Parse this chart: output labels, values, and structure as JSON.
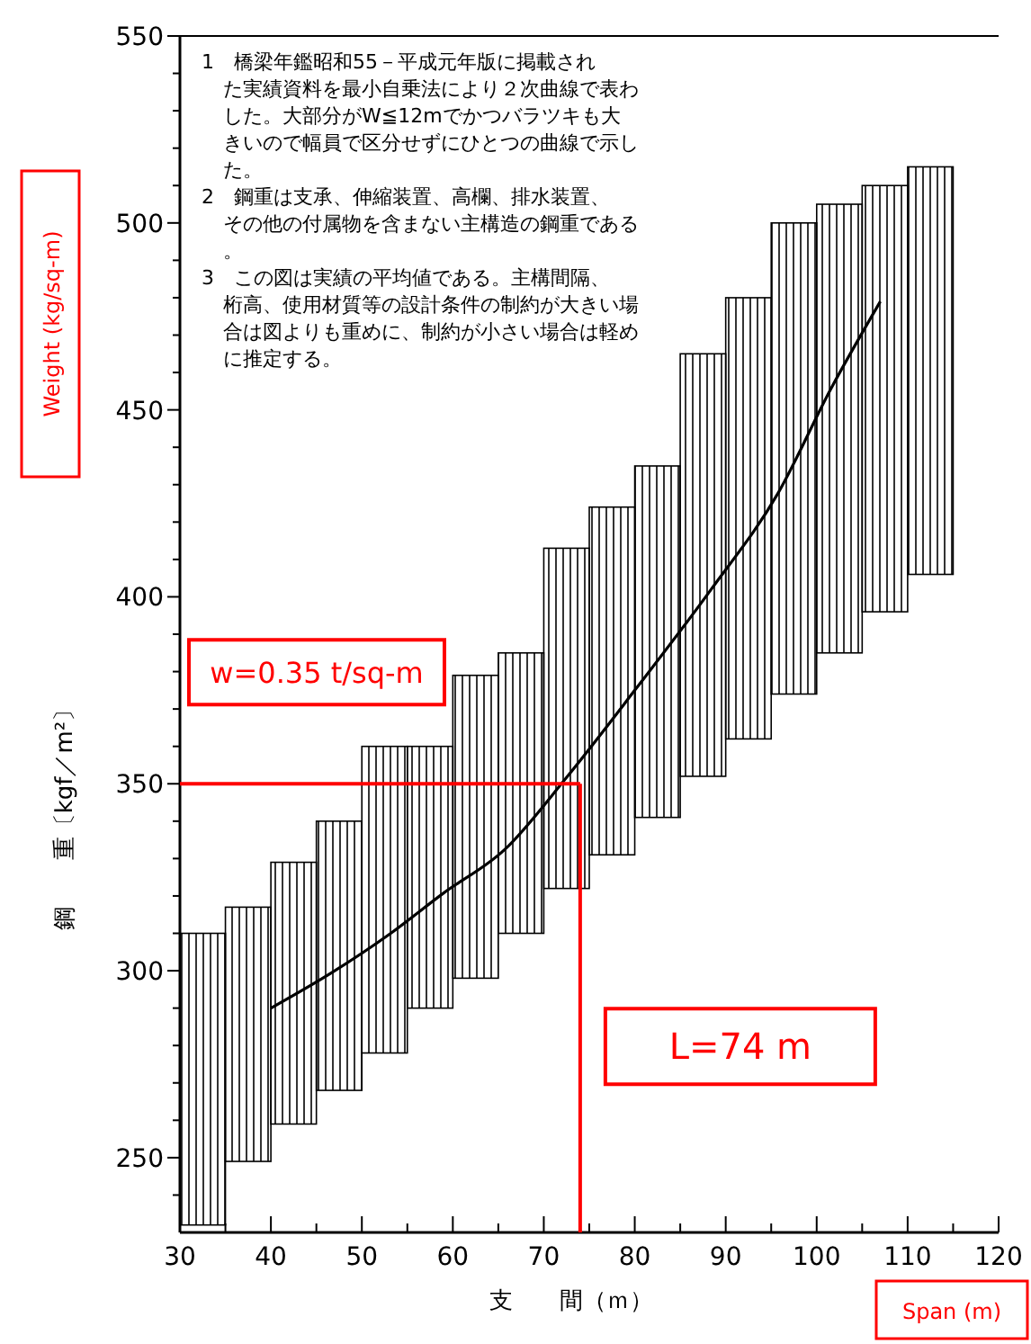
{
  "chart_data": {
    "type": "bar",
    "xlabel": "支　　間（ｍ）",
    "ylabel": "鋼　　重〔kgf／m²〕",
    "series": [
      {
        "color": "#000000",
        "x": [
          32.5,
          37.5,
          42.5,
          47.5,
          52.5,
          57.5,
          62.5,
          67.5,
          72.5,
          77.5,
          82.5,
          87.5,
          92.5,
          97.5,
          102.5,
          107.5,
          112.5
        ],
        "base": [
          232,
          249,
          259,
          268,
          278,
          290,
          298,
          310,
          322,
          331,
          341,
          352,
          362,
          374,
          385,
          396,
          406
        ],
        "values": [
          78,
          68,
          70,
          72,
          82,
          70,
          81,
          75,
          91,
          93,
          94,
          113,
          118,
          126,
          120,
          114,
          109
        ]
      },
      {
        "type": "line",
        "color": "#000000",
        "x": [
          40,
          46.7,
          53,
          59,
          65.7,
          72.5,
          80,
          88.4,
          95.7,
          101.6,
          107
        ],
        "values": [
          290,
          299.5,
          309.7,
          320.8,
          332.4,
          351.7,
          375,
          402,
          427.5,
          455.8,
          479
        ],
        "marker": "none",
        "line_style": "solid"
      }
    ],
    "xlim": [
      30,
      120
    ],
    "ylim": [
      230,
      550
    ],
    "xticks": [
      30,
      {
        "value": 35,
        "label": null
      },
      40,
      {
        "value": 45,
        "label": null
      },
      50,
      {
        "value": 55,
        "label": null
      },
      60,
      {
        "value": 65,
        "label": null
      },
      70,
      {
        "value": 75,
        "label": null
      },
      80,
      {
        "value": 85,
        "label": null
      },
      90,
      {
        "value": 95,
        "label": null
      },
      100,
      {
        "value": 105,
        "label": null
      },
      110,
      {
        "value": 115,
        "label": null
      },
      120
    ],
    "yticks": [
      {
        "value": 240,
        "label": null
      },
      250,
      {
        "value": 260,
        "label": null
      },
      {
        "value": 270,
        "label": null
      },
      {
        "value": 280,
        "label": null
      },
      {
        "value": 290,
        "label": null
      },
      300,
      {
        "value": 310,
        "label": null
      },
      {
        "value": 320,
        "label": null
      },
      {
        "value": 330,
        "label": null
      },
      {
        "value": 340,
        "label": null
      },
      350,
      {
        "value": 360,
        "label": null
      },
      {
        "value": 370,
        "label": null
      },
      {
        "value": 380,
        "label": null
      },
      {
        "value": 390,
        "label": null
      },
      400,
      {
        "value": 410,
        "label": null
      },
      {
        "value": 420,
        "label": null
      },
      {
        "value": 430,
        "label": null
      },
      {
        "value": 440,
        "label": null
      },
      450,
      {
        "value": 460,
        "label": null
      },
      {
        "value": 470,
        "label": null
      },
      {
        "value": 480,
        "label": null
      },
      {
        "value": 490,
        "label": null
      },
      500,
      {
        "value": 510,
        "label": null
      },
      {
        "value": 520,
        "label": null
      },
      {
        "value": 530,
        "label": null
      },
      {
        "value": 540,
        "label": null
      },
      550
    ],
    "ref_lines": [
      {
        "axis": "y",
        "value": 350,
        "label": "w=0.35 t/sq-m",
        "color": "#ff0000"
      },
      {
        "axis": "x",
        "value": 74,
        "label": "L=74 m",
        "color": "#ff0000"
      }
    ],
    "annotations": [
      "1　橋梁年鑑昭和55－平成元年版に掲載された実績資料を最小自乗法により２次曲線で表わした。大部分がW≦12mでかつバラツキも大きいので幅員で区分せずにひとつの曲線で示した。",
      "2　鋼重は支承、伸縮装置、高欄、排水装置、その他の付属物を含まない主構造の鋼重である。",
      "3　この図は実績の平均値である。主構間隔、桁高、使用材質等の設計条件の制約が大きい場合は図よりも重めに、制約が小さい場合は軽めに推定する。",
      "Weight (kg/sq-m)",
      "Span (m)"
    ],
    "grid": false
  }
}
